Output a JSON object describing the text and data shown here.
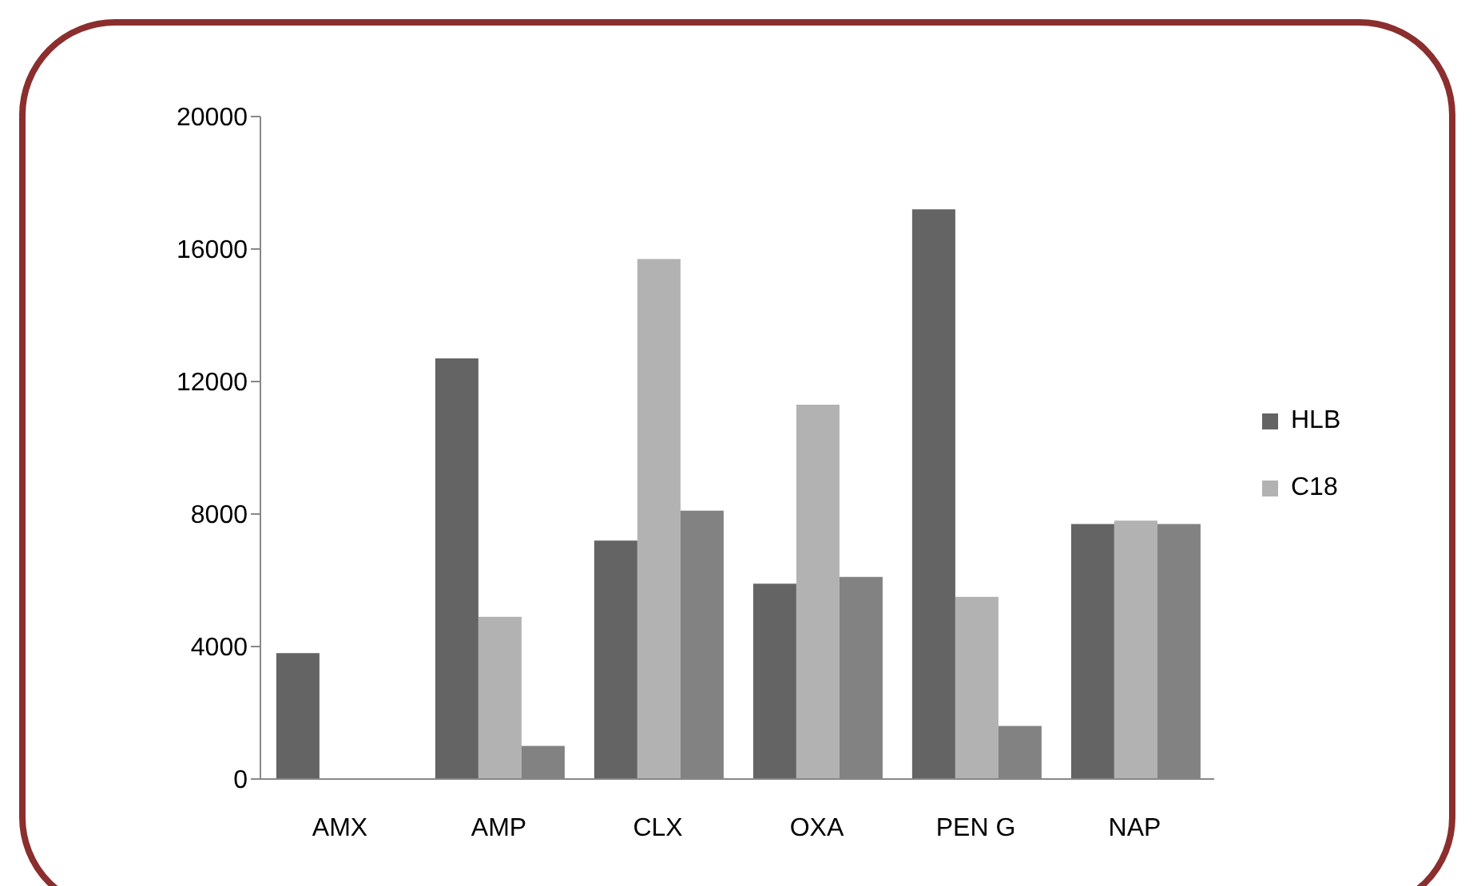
{
  "chart_data": {
    "type": "bar",
    "categories": [
      "AMX",
      "AMP",
      "CLX",
      "OXA",
      "PEN G",
      "NAP"
    ],
    "series": [
      {
        "name": "HLB",
        "color": "#646464",
        "values": [
          3800,
          12700,
          7200,
          5900,
          17200,
          7700
        ]
      },
      {
        "name": "C18",
        "color": "#b2b2b2",
        "values": [
          0,
          4900,
          15700,
          11300,
          5500,
          7800
        ]
      },
      {
        "color": "#828282",
        "values": [
          0,
          1000,
          8100,
          6100,
          1600,
          7700
        ]
      }
    ],
    "ylim": [
      0,
      20000
    ],
    "yticks": [
      0,
      4000,
      8000,
      12000,
      16000,
      20000
    ],
    "grid": false,
    "legend": "right"
  }
}
